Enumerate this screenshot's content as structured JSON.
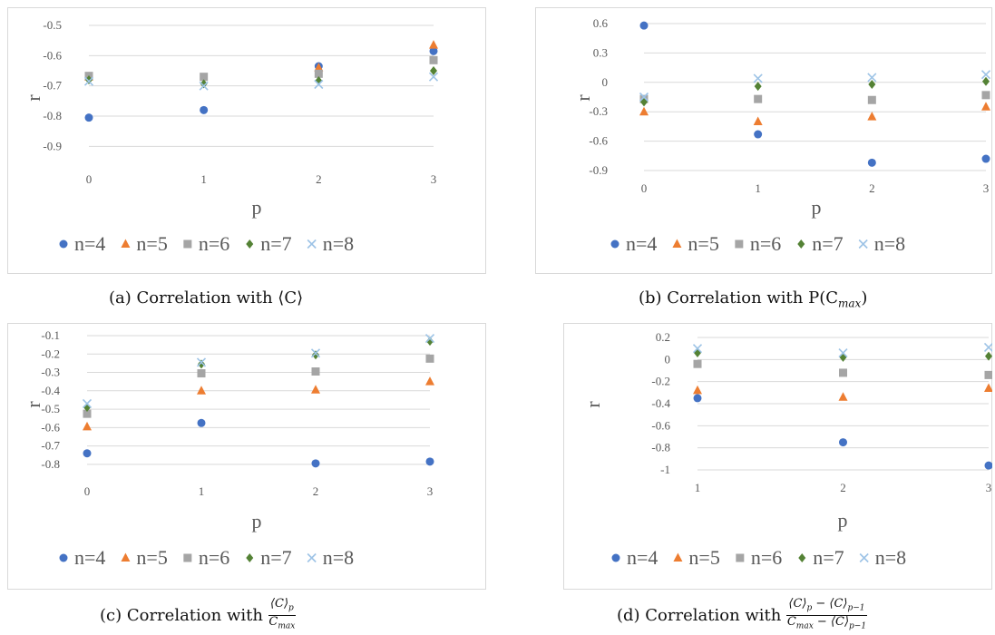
{
  "colors": {
    "n=4": "#4472C4",
    "n=5": "#ED7D31",
    "n=6": "#A5A5A5",
    "n=7": "#548235",
    "n=8": "#9DC3E6"
  },
  "legend": [
    "n=4",
    "n=5",
    "n=6",
    "n=7",
    "n=8"
  ],
  "chart_data": [
    {
      "type": "scatter",
      "xlabel": "p",
      "ylabel": "r",
      "xlim": [
        0,
        3
      ],
      "ylim": [
        -0.95,
        -0.5
      ],
      "xticks": [
        0,
        1,
        2,
        3
      ],
      "yticks": [
        -0.5,
        -0.6,
        -0.7,
        -0.8,
        -0.9
      ],
      "ytick_labels": [
        "-0.5",
        "-0.6",
        "-0.7",
        "-0.8",
        "-0.9"
      ],
      "grid": "horizontal",
      "legend_position": "bottom",
      "series": [
        {
          "name": "n=4",
          "marker": "circle",
          "x": [
            0,
            1,
            2,
            3
          ],
          "y": [
            -0.805,
            -0.78,
            -0.635,
            -0.585
          ]
        },
        {
          "name": "n=5",
          "marker": "triangle",
          "x": [
            0,
            2,
            3
          ],
          "y": [
            -0.67,
            -0.64,
            -0.565
          ]
        },
        {
          "name": "n=6",
          "marker": "square",
          "x": [
            0,
            1,
            2,
            3
          ],
          "y": [
            -0.667,
            -0.67,
            -0.66,
            -0.615
          ]
        },
        {
          "name": "n=7",
          "marker": "diamond",
          "x": [
            0,
            1,
            2,
            3
          ],
          "y": [
            -0.68,
            -0.693,
            -0.683,
            -0.65
          ]
        },
        {
          "name": "n=8",
          "marker": "x",
          "x": [
            0,
            1,
            2,
            3
          ],
          "y": [
            -0.685,
            -0.7,
            -0.695,
            -0.67
          ]
        }
      ],
      "caption": "(a) Correlation with ⟨C⟩"
    },
    {
      "type": "scatter",
      "xlabel": "p",
      "ylabel": "r",
      "xlim": [
        0,
        3
      ],
      "ylim": [
        -0.9,
        0.6
      ],
      "xticks": [
        0,
        1,
        2,
        3
      ],
      "yticks": [
        0.6,
        0.3,
        0,
        -0.3,
        -0.6,
        -0.9
      ],
      "ytick_labels": [
        "0.6",
        "0.3",
        "0",
        "-0.3",
        "-0.6",
        "-0.9"
      ],
      "grid": "horizontal",
      "legend_position": "bottom",
      "series": [
        {
          "name": "n=4",
          "marker": "circle",
          "x": [
            0,
            1,
            2,
            3
          ],
          "y": [
            0.58,
            -0.53,
            -0.82,
            -0.78
          ]
        },
        {
          "name": "n=5",
          "marker": "triangle",
          "x": [
            0,
            1,
            2,
            3
          ],
          "y": [
            -0.3,
            -0.4,
            -0.35,
            -0.25
          ]
        },
        {
          "name": "n=6",
          "marker": "square",
          "x": [
            0,
            1,
            2,
            3
          ],
          "y": [
            -0.17,
            -0.17,
            -0.18,
            -0.13
          ]
        },
        {
          "name": "n=7",
          "marker": "diamond",
          "x": [
            0,
            1,
            2,
            3
          ],
          "y": [
            -0.2,
            -0.04,
            -0.02,
            0.01
          ]
        },
        {
          "name": "n=8",
          "marker": "x",
          "x": [
            0,
            1,
            2,
            3
          ],
          "y": [
            -0.15,
            0.04,
            0.05,
            0.08
          ]
        }
      ],
      "caption": "(b) Correlation with P(C",
      "caption_sub": "max",
      "caption_end": ")"
    },
    {
      "type": "scatter",
      "xlabel": "p",
      "ylabel": "r",
      "xlim": [
        0,
        3
      ],
      "ylim": [
        -0.85,
        -0.1
      ],
      "xticks": [
        0,
        1,
        2,
        3
      ],
      "yticks": [
        -0.1,
        -0.2,
        -0.3,
        -0.4,
        -0.5,
        -0.6,
        -0.7,
        -0.8
      ],
      "ytick_labels": [
        "-0.1",
        "-0.2",
        "-0.3",
        "-0.4",
        "-0.5",
        "-0.6",
        "-0.7",
        "-0.8"
      ],
      "grid": "horizontal",
      "legend_position": "bottom",
      "series": [
        {
          "name": "n=4",
          "marker": "circle",
          "x": [
            0,
            1,
            2,
            3
          ],
          "y": [
            -0.74,
            -0.575,
            -0.795,
            -0.785
          ]
        },
        {
          "name": "n=5",
          "marker": "triangle",
          "x": [
            0,
            1,
            2,
            3
          ],
          "y": [
            -0.595,
            -0.4,
            -0.395,
            -0.35
          ]
        },
        {
          "name": "n=6",
          "marker": "square",
          "x": [
            0,
            1,
            2,
            3
          ],
          "y": [
            -0.525,
            -0.305,
            -0.295,
            -0.225
          ]
        },
        {
          "name": "n=7",
          "marker": "diamond",
          "x": [
            0,
            1,
            2,
            3
          ],
          "y": [
            -0.49,
            -0.255,
            -0.205,
            -0.13
          ]
        },
        {
          "name": "n=8",
          "marker": "x",
          "x": [
            0,
            1,
            2,
            3
          ],
          "y": [
            -0.47,
            -0.245,
            -0.195,
            -0.115
          ]
        }
      ],
      "caption": "(c) Correlation with",
      "caption_num": "⟨C⟩",
      "caption_num_sub": "p",
      "caption_den": "C",
      "caption_den_sub": "max"
    },
    {
      "type": "scatter",
      "xlabel": "p",
      "ylabel": "r",
      "xlim": [
        1,
        3
      ],
      "ylim": [
        -1,
        0.2
      ],
      "xticks": [
        1,
        2,
        3
      ],
      "yticks": [
        0.2,
        0,
        -0.2,
        -0.4,
        -0.6,
        -0.8,
        -1
      ],
      "ytick_labels": [
        "0.2",
        "0",
        "-0.2",
        "-0.4",
        "-0.6",
        "-0.8",
        "-1"
      ],
      "grid": "horizontal",
      "legend_position": "bottom",
      "series": [
        {
          "name": "n=4",
          "marker": "circle",
          "x": [
            1,
            2,
            3
          ],
          "y": [
            -0.35,
            -0.75,
            -0.96
          ]
        },
        {
          "name": "n=5",
          "marker": "triangle",
          "x": [
            1,
            2,
            3
          ],
          "y": [
            -0.28,
            -0.34,
            -0.26
          ]
        },
        {
          "name": "n=6",
          "marker": "square",
          "x": [
            1,
            2,
            3
          ],
          "y": [
            -0.04,
            -0.12,
            -0.14
          ]
        },
        {
          "name": "n=7",
          "marker": "diamond",
          "x": [
            1,
            2,
            3
          ],
          "y": [
            0.06,
            0.02,
            0.03
          ]
        },
        {
          "name": "n=8",
          "marker": "x",
          "x": [
            1,
            2,
            3
          ],
          "y": [
            0.1,
            0.06,
            0.11
          ]
        }
      ],
      "caption": "(d) Correlation with",
      "caption_num": "⟨C⟩",
      "caption_num_sub": "p",
      "caption_num_mid": " − ⟨C⟩",
      "caption_num_sub2": "p−1",
      "caption_den": "C",
      "caption_den_sub": "max",
      "caption_den_mid": " − ⟨C⟩",
      "caption_den_sub2": "p−1"
    }
  ]
}
